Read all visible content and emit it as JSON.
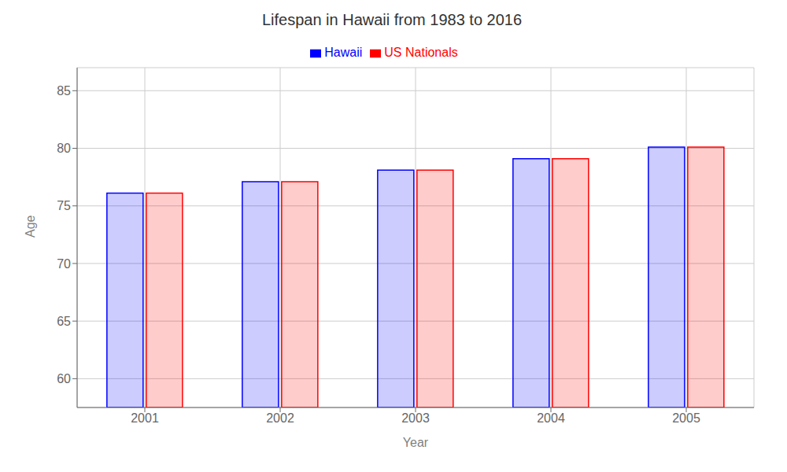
{
  "chart_data": {
    "type": "bar",
    "title": "Lifespan in Hawaii from 1983 to 2016",
    "x_label": "Year",
    "y_label": "Age",
    "categories": [
      "2001",
      "2002",
      "2003",
      "2004",
      "2005"
    ],
    "series": [
      {
        "name": "Hawaii",
        "color": "#0000ff",
        "values": [
          76.1,
          77.1,
          78.1,
          79.1,
          80.1
        ]
      },
      {
        "name": "US Nationals",
        "color": "#ff0000",
        "values": [
          76.1,
          77.1,
          78.1,
          79.1,
          80.1
        ]
      }
    ],
    "ylim": [
      57.5,
      87
    ],
    "yticks": [
      60,
      65,
      70,
      75,
      80,
      85
    ],
    "grid": true,
    "legend": "top"
  }
}
